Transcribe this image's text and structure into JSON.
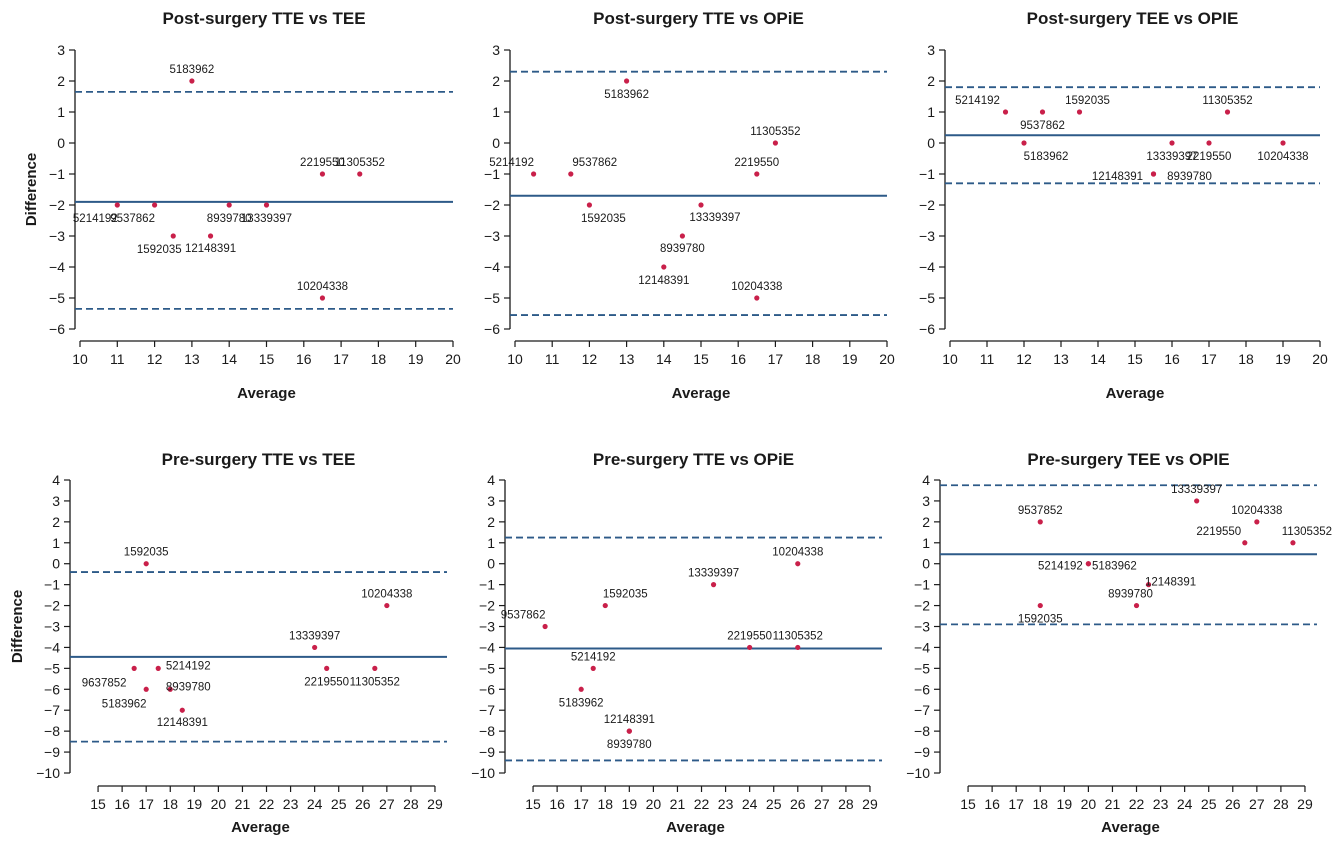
{
  "chart_data": [
    {
      "type": "scatter",
      "title": "Post-surgery TTE vs TEE",
      "xlabel": "Average",
      "ylabel": "Difference",
      "xlim": [
        10,
        20
      ],
      "ylim": [
        -6,
        3
      ],
      "xticks": [
        10,
        11,
        12,
        13,
        14,
        15,
        16,
        17,
        18,
        19,
        20
      ],
      "yticks": [
        -6,
        -5,
        -4,
        -3,
        -2,
        -1,
        0,
        1,
        2,
        3
      ],
      "mean": -1.9,
      "upper_limit": 1.65,
      "lower_limit": -5.35,
      "points": [
        {
          "id": "5214192",
          "x": 11,
          "y": -2
        },
        {
          "id": "9537862",
          "x": 12,
          "y": -2
        },
        {
          "id": "1592035",
          "x": 12.5,
          "y": -3
        },
        {
          "id": "5183962",
          "x": 13,
          "y": 2
        },
        {
          "id": "12148391",
          "x": 13.5,
          "y": -3
        },
        {
          "id": "8939780",
          "x": 14,
          "y": -2
        },
        {
          "id": "13339397",
          "x": 15,
          "y": -2
        },
        {
          "id": "2219550",
          "x": 16.5,
          "y": -1
        },
        {
          "id": "10204338",
          "x": 16.5,
          "y": -5
        },
        {
          "id": "11305352",
          "x": 17.5,
          "y": -1
        }
      ]
    },
    {
      "type": "scatter",
      "title": "Post-surgery TTE vs OPiE",
      "xlabel": "Average",
      "ylabel": "",
      "xlim": [
        10,
        20
      ],
      "ylim": [
        -6,
        3
      ],
      "xticks": [
        10,
        11,
        12,
        13,
        14,
        15,
        16,
        17,
        18,
        19,
        20
      ],
      "yticks": [
        -6,
        -5,
        -4,
        -3,
        -2,
        -1,
        0,
        1,
        2,
        3
      ],
      "mean": -1.7,
      "upper_limit": 2.3,
      "lower_limit": -5.55,
      "points": [
        {
          "id": "5214192",
          "x": 10.5,
          "y": -1
        },
        {
          "id": "9537862",
          "x": 11.5,
          "y": -1
        },
        {
          "id": "1592035",
          "x": 12,
          "y": -2
        },
        {
          "id": "5183962",
          "x": 13,
          "y": 2
        },
        {
          "id": "12148391",
          "x": 14,
          "y": -4
        },
        {
          "id": "8939780",
          "x": 14.5,
          "y": -3
        },
        {
          "id": "13339397",
          "x": 15,
          "y": -2
        },
        {
          "id": "2219550",
          "x": 16.5,
          "y": -1
        },
        {
          "id": "10204338",
          "x": 16.5,
          "y": -5
        },
        {
          "id": "11305352",
          "x": 17,
          "y": 0
        }
      ]
    },
    {
      "type": "scatter",
      "title": "Post-surgery TEE vs OPIE",
      "xlabel": "Average",
      "ylabel": "",
      "xlim": [
        10,
        20
      ],
      "ylim": [
        -6,
        3
      ],
      "xticks": [
        10,
        11,
        12,
        13,
        14,
        15,
        16,
        17,
        18,
        19,
        20
      ],
      "yticks": [
        -6,
        -5,
        -4,
        -3,
        -2,
        -1,
        0,
        1,
        2,
        3
      ],
      "mean": 0.25,
      "upper_limit": 1.8,
      "lower_limit": -1.3,
      "points": [
        {
          "id": "5214192",
          "x": 11.5,
          "y": 1
        },
        {
          "id": "5183962",
          "x": 12,
          "y": 0
        },
        {
          "id": "9537862",
          "x": 12.5,
          "y": 1
        },
        {
          "id": "1592035",
          "x": 13.5,
          "y": 1
        },
        {
          "id": "12148391",
          "x": 15.5,
          "y": -1
        },
        {
          "id": "13339397",
          "x": 16,
          "y": 0
        },
        {
          "id": "2219550",
          "x": 17,
          "y": 0
        },
        {
          "id": "11305352",
          "x": 17.5,
          "y": 1
        },
        {
          "id": "10204338",
          "x": 19,
          "y": 0
        },
        {
          "id": "8939780",
          "x": 15.5,
          "y": -1
        }
      ]
    },
    {
      "type": "scatter",
      "title": "Pre-surgery TTE vs TEE",
      "xlabel": "Average",
      "ylabel": "Difference",
      "xlim": [
        14,
        29.5
      ],
      "ylim": [
        -10,
        4
      ],
      "xticks": [
        15,
        16,
        17,
        18,
        19,
        20,
        21,
        22,
        23,
        24,
        25,
        26,
        27,
        28,
        29
      ],
      "yticks": [
        -10,
        -9,
        -8,
        -7,
        -6,
        -5,
        -4,
        -3,
        -2,
        -1,
        0,
        1,
        2,
        3,
        4
      ],
      "mean": -4.45,
      "upper_limit": -0.4,
      "lower_limit": -8.5,
      "points": [
        {
          "id": "1592035",
          "x": 17,
          "y": 0
        },
        {
          "id": "9637852",
          "x": 16.5,
          "y": -5
        },
        {
          "id": "5214192",
          "x": 17.5,
          "y": -5
        },
        {
          "id": "5183962",
          "x": 17,
          "y": -6
        },
        {
          "id": "8939780",
          "x": 18,
          "y": -6
        },
        {
          "id": "12148391",
          "x": 18.5,
          "y": -7
        },
        {
          "id": "13339397",
          "x": 24,
          "y": -4
        },
        {
          "id": "2219550",
          "x": 24.5,
          "y": -5
        },
        {
          "id": "11305352",
          "x": 26.5,
          "y": -5
        },
        {
          "id": "10204338",
          "x": 27,
          "y": -2
        }
      ]
    },
    {
      "type": "scatter",
      "title": "Pre-surgery TTE vs OPiE",
      "xlabel": "Average",
      "ylabel": "",
      "xlim": [
        14,
        29.5
      ],
      "ylim": [
        -10,
        4
      ],
      "xticks": [
        15,
        16,
        17,
        18,
        19,
        20,
        21,
        22,
        23,
        24,
        25,
        26,
        27,
        28,
        29
      ],
      "yticks": [
        -10,
        -9,
        -8,
        -7,
        -6,
        -5,
        -4,
        -3,
        -2,
        -1,
        0,
        1,
        2,
        3,
        4
      ],
      "mean": -4.05,
      "upper_limit": 1.25,
      "lower_limit": -9.4,
      "points": [
        {
          "id": "9537862",
          "x": 15.5,
          "y": -3
        },
        {
          "id": "1592035",
          "x": 18,
          "y": -2
        },
        {
          "id": "5214192",
          "x": 17.5,
          "y": -5
        },
        {
          "id": "5183962",
          "x": 17,
          "y": -6
        },
        {
          "id": "12148391",
          "x": 19,
          "y": -8
        },
        {
          "id": "8939780",
          "x": 19,
          "y": -8
        },
        {
          "id": "13339397",
          "x": 22.5,
          "y": -1
        },
        {
          "id": "2219550",
          "x": 24,
          "y": -4
        },
        {
          "id": "11305352",
          "x": 26,
          "y": -4
        },
        {
          "id": "10204338",
          "x": 26,
          "y": 0
        }
      ]
    },
    {
      "type": "scatter",
      "title": "Pre-surgery TEE vs OPIE",
      "xlabel": "Average",
      "ylabel": "",
      "xlim": [
        14,
        29.5
      ],
      "ylim": [
        -10,
        4
      ],
      "xticks": [
        15,
        16,
        17,
        18,
        19,
        20,
        21,
        22,
        23,
        24,
        25,
        26,
        27,
        28,
        29
      ],
      "yticks": [
        -10,
        -9,
        -8,
        -7,
        -6,
        -5,
        -4,
        -3,
        -2,
        -1,
        0,
        1,
        2,
        3,
        4
      ],
      "mean": 0.45,
      "upper_limit": 3.75,
      "lower_limit": -2.9,
      "points": [
        {
          "id": "9537852",
          "x": 18,
          "y": 2
        },
        {
          "id": "1592035",
          "x": 18,
          "y": -2
        },
        {
          "id": "5214192",
          "x": 20,
          "y": 0
        },
        {
          "id": "5183962",
          "x": 20,
          "y": 0
        },
        {
          "id": "12148391",
          "x": 22.5,
          "y": -1
        },
        {
          "id": "8939780",
          "x": 22,
          "y": -2
        },
        {
          "id": "13339397",
          "x": 24.5,
          "y": 3
        },
        {
          "id": "10204338",
          "x": 27,
          "y": 2
        },
        {
          "id": "2219550",
          "x": 26.5,
          "y": 1
        },
        {
          "id": "11305352",
          "x": 28.5,
          "y": 1
        }
      ]
    }
  ]
}
